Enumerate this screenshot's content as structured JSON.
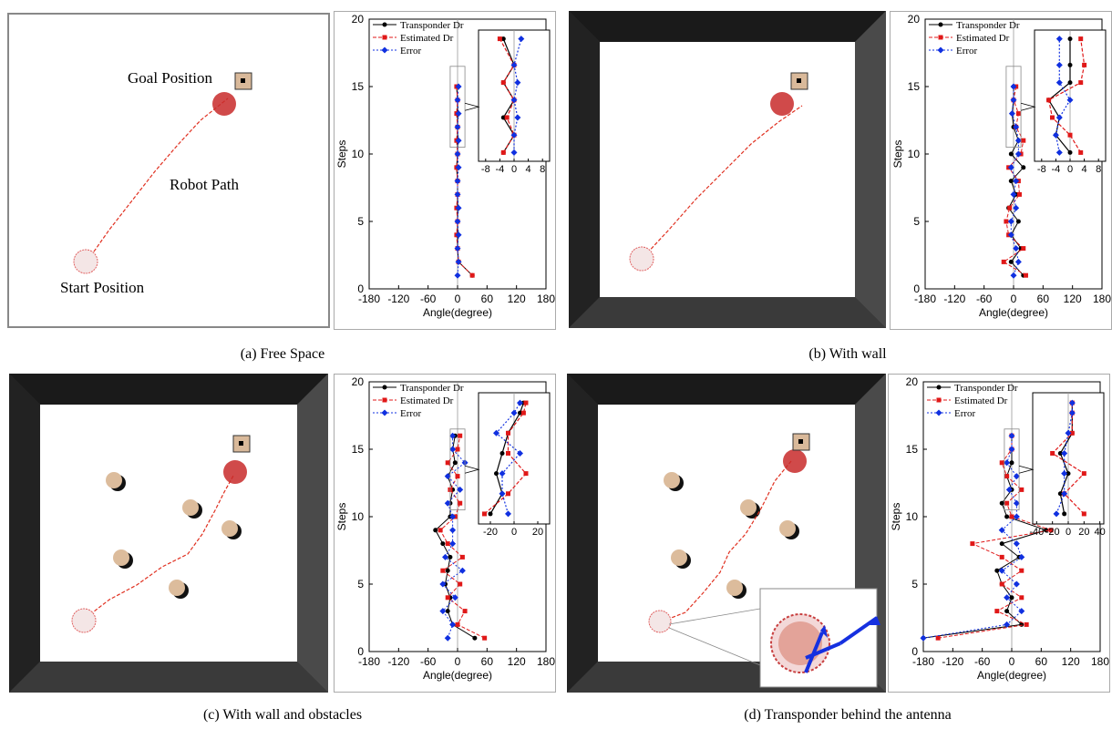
{
  "figures": [
    {
      "id": "a",
      "caption": "(a) Free Space",
      "scene": {
        "walls": false,
        "goal_label": "Goal Position",
        "path_label": "Robot Path",
        "start_label": "Start Position"
      }
    },
    {
      "id": "b",
      "caption": "(b) With wall",
      "scene": {
        "walls": true
      }
    },
    {
      "id": "c",
      "caption": "(c) With wall and obstacles",
      "scene": {
        "walls": true,
        "obstacles": true
      }
    },
    {
      "id": "d",
      "caption": "(d) Transponder behind the antenna",
      "scene": {
        "walls": true,
        "obstacles": true,
        "zoom_inset": true
      }
    }
  ],
  "chart_data": [
    {
      "id": "a",
      "type": "line",
      "xlabel": "Angle(degree)",
      "ylabel": "Steps",
      "xlim": [
        -180,
        180
      ],
      "ylim": [
        0,
        20
      ],
      "xticks": [
        "-180",
        "-120",
        "-60",
        "0",
        "60",
        "120",
        "180"
      ],
      "yticks": [
        "0",
        "5",
        "10",
        "15",
        "20"
      ],
      "legend": [
        "Transponder Dr",
        "Estimated Dr",
        "Error"
      ],
      "series": [
        {
          "name": "Transponder Dr",
          "x": [
            30,
            2,
            0,
            0,
            0,
            0,
            0,
            0,
            -2,
            0,
            0,
            0,
            0,
            0,
            -2
          ],
          "y": [
            1,
            2,
            3,
            4,
            5,
            6,
            7,
            8,
            9,
            10,
            11,
            12,
            13,
            14,
            15
          ]
        },
        {
          "name": "Estimated Dr",
          "x": [
            30,
            2,
            0,
            -2,
            0,
            -2,
            0,
            0,
            -2,
            0,
            -2,
            0,
            -2,
            0,
            -2
          ],
          "y": [
            1,
            2,
            3,
            4,
            5,
            6,
            7,
            8,
            9,
            10,
            11,
            12,
            13,
            14,
            15
          ]
        },
        {
          "name": "Error",
          "x": [
            0,
            2,
            0,
            2,
            0,
            2,
            0,
            0,
            2,
            0,
            2,
            0,
            2,
            0,
            2
          ],
          "y": [
            1,
            2,
            3,
            4,
            5,
            6,
            7,
            8,
            9,
            10,
            11,
            12,
            13,
            14,
            15
          ]
        }
      ],
      "inset": {
        "xticks": [
          "-8",
          "-4",
          "0",
          "4",
          "8"
        ],
        "xlim": [
          -10,
          10
        ],
        "ylim": [
          10.5,
          18
        ],
        "series": [
          {
            "x": [
              -3,
              0,
              -3,
              0,
              -3,
              0,
              -3
            ],
            "y": [
              11,
              12,
              13,
              14,
              15,
              16,
              17.5
            ]
          },
          {
            "x": [
              -3,
              0,
              -2,
              0,
              -3,
              0,
              -4
            ],
            "y": [
              11,
              12,
              13,
              14,
              15,
              16,
              17.5
            ]
          },
          {
            "x": [
              0,
              0,
              1,
              0,
              1,
              0,
              2
            ],
            "y": [
              11,
              12,
              13,
              14,
              15,
              16,
              17.5
            ]
          }
        ]
      }
    },
    {
      "id": "b",
      "type": "line",
      "xlabel": "Angle(degree)",
      "ylabel": "Steps",
      "xlim": [
        -180,
        180
      ],
      "ylim": [
        0,
        20
      ],
      "xticks": [
        "-180",
        "-120",
        "-60",
        "0",
        "60",
        "120",
        "180"
      ],
      "yticks": [
        "0",
        "5",
        "10",
        "15",
        "20"
      ],
      "legend": [
        "Transponder Dr",
        "Estimated Dr",
        "Error"
      ],
      "series": [
        {
          "name": "Transponder Dr",
          "x": [
            20,
            -5,
            15,
            -5,
            10,
            -10,
            5,
            -5,
            20,
            -5,
            10,
            0,
            -3,
            0,
            0
          ],
          "y": [
            1,
            2,
            3,
            4,
            5,
            6,
            7,
            8,
            9,
            10,
            11,
            12,
            13,
            14,
            15
          ]
        },
        {
          "name": "Estimated Dr",
          "x": [
            25,
            -20,
            20,
            -10,
            -15,
            -8,
            12,
            10,
            -10,
            15,
            20,
            5,
            10,
            0,
            5
          ],
          "y": [
            1,
            2,
            3,
            4,
            5,
            6,
            7,
            8,
            9,
            10,
            11,
            12,
            13,
            14,
            15
          ]
        },
        {
          "name": "Error",
          "x": [
            0,
            10,
            5,
            -5,
            -5,
            5,
            0,
            5,
            -5,
            10,
            10,
            5,
            -3,
            0,
            0
          ],
          "y": [
            1,
            2,
            3,
            4,
            5,
            6,
            7,
            8,
            9,
            10,
            11,
            12,
            13,
            14,
            15
          ]
        }
      ],
      "inset": {
        "xticks": [
          "-8",
          "-4",
          "0",
          "4",
          "8"
        ],
        "xlim": [
          -10,
          10
        ],
        "ylim": [
          10.5,
          18
        ],
        "series": [
          {
            "x": [
              0,
              -4,
              -3,
              -6,
              0,
              0,
              0
            ],
            "y": [
              11,
              12,
              13,
              14,
              15,
              16,
              17.5
            ]
          },
          {
            "x": [
              3,
              0,
              -5,
              -6,
              3,
              4,
              3
            ],
            "y": [
              11,
              12,
              13,
              14,
              15,
              16,
              17.5
            ]
          },
          {
            "x": [
              -3,
              -4,
              -3,
              0,
              -3,
              -3,
              -3
            ],
            "y": [
              11,
              12,
              13,
              14,
              15,
              16,
              17.5
            ]
          }
        ]
      }
    },
    {
      "id": "c",
      "type": "line",
      "xlabel": "Angle(degree)",
      "ylabel": "Steps",
      "xlim": [
        -180,
        180
      ],
      "ylim": [
        0,
        20
      ],
      "xticks": [
        "-180",
        "-120",
        "-60",
        "0",
        "60",
        "120",
        "180"
      ],
      "yticks": [
        "0",
        "5",
        "10",
        "15",
        "20"
      ],
      "legend": [
        "Transponder Dr",
        "Estimated Dr",
        "Error"
      ],
      "series": [
        {
          "name": "Transponder Dr",
          "x": [
            35,
            -10,
            -20,
            -15,
            -25,
            -20,
            -15,
            -30,
            -45,
            -15,
            -15,
            -10,
            -20,
            -5,
            -10,
            -5
          ],
          "y": [
            1,
            2,
            3,
            4,
            5,
            6,
            7,
            8,
            9,
            10,
            11,
            12,
            13,
            14,
            15,
            16
          ]
        },
        {
          "name": "Estimated Dr",
          "x": [
            55,
            0,
            15,
            -20,
            5,
            -30,
            10,
            -20,
            -35,
            -5,
            5,
            -15,
            0,
            -20,
            0,
            5
          ],
          "y": [
            1,
            2,
            3,
            4,
            5,
            6,
            7,
            8,
            9,
            10,
            11,
            12,
            13,
            14,
            15,
            16
          ]
        },
        {
          "name": "Error",
          "x": [
            -20,
            -10,
            -30,
            -5,
            -30,
            10,
            -25,
            -10,
            -10,
            -10,
            -20,
            5,
            -20,
            15,
            -10,
            -10
          ],
          "y": [
            1,
            2,
            3,
            4,
            5,
            6,
            7,
            8,
            9,
            10,
            11,
            12,
            13,
            14,
            15,
            16
          ]
        }
      ],
      "inset": {
        "xticks": [
          "-20",
          "0",
          "20"
        ],
        "xlim": [
          -30,
          30
        ],
        "ylim": [
          10.5,
          17
        ],
        "series": [
          {
            "x": [
              -20,
              -10,
              -15,
              -10,
              -5,
              5,
              8
            ],
            "y": [
              11,
              12,
              13,
              14,
              15,
              16,
              16.5
            ]
          },
          {
            "x": [
              -25,
              -5,
              10,
              -5,
              -5,
              8,
              10
            ],
            "y": [
              11,
              12,
              13,
              14,
              15,
              16,
              16.5
            ]
          },
          {
            "x": [
              -5,
              -10,
              -10,
              5,
              -15,
              0,
              5
            ],
            "y": [
              11,
              12,
              13,
              14,
              15,
              16,
              16.5
            ]
          }
        ]
      }
    },
    {
      "id": "d",
      "type": "line",
      "xlabel": "Angle(degree)",
      "ylabel": "Steps",
      "xlim": [
        -180,
        180
      ],
      "ylim": [
        0,
        20
      ],
      "xticks": [
        "-180",
        "-120",
        "-60",
        "0",
        "60",
        "120",
        "180"
      ],
      "yticks": [
        "0",
        "5",
        "10",
        "15",
        "20"
      ],
      "legend": [
        "Transponder Dr",
        "Estimated Dr",
        "Error"
      ],
      "series": [
        {
          "name": "Transponder Dr",
          "x": [
            -180,
            20,
            -10,
            0,
            -20,
            -30,
            15,
            -20,
            70,
            -10,
            -20,
            0,
            -10,
            0,
            0,
            0
          ],
          "y": [
            1,
            2,
            3,
            4,
            5,
            6,
            7,
            8,
            9,
            10,
            11,
            12,
            13,
            14,
            15,
            16
          ]
        },
        {
          "name": "Estimated Dr",
          "x": [
            -150,
            30,
            -30,
            20,
            -20,
            20,
            -20,
            -80,
            80,
            0,
            -10,
            20,
            -10,
            -20,
            0,
            0
          ],
          "y": [
            1,
            2,
            3,
            4,
            5,
            6,
            7,
            8,
            9,
            10,
            11,
            12,
            13,
            14,
            15,
            16
          ]
        },
        {
          "name": "Error",
          "x": [
            -180,
            -10,
            20,
            -10,
            10,
            -20,
            20,
            10,
            -20,
            10,
            10,
            -5,
            10,
            -10,
            0,
            0
          ],
          "y": [
            1,
            2,
            3,
            4,
            5,
            6,
            7,
            8,
            9,
            10,
            11,
            12,
            13,
            14,
            15,
            16
          ]
        }
      ],
      "inset": {
        "xticks": [
          "-40",
          "-20",
          "0",
          "20",
          "40"
        ],
        "xlim": [
          -45,
          45
        ],
        "ylim": [
          10.5,
          17
        ],
        "series": [
          {
            "x": [
              -5,
              -10,
              0,
              -10,
              5,
              5,
              5
            ],
            "y": [
              11,
              12,
              13,
              14,
              15,
              16,
              16.5
            ]
          },
          {
            "x": [
              20,
              -5,
              20,
              -20,
              5,
              5,
              5
            ],
            "y": [
              11,
              12,
              13,
              14,
              15,
              16,
              16.5
            ]
          },
          {
            "x": [
              -15,
              -5,
              -5,
              -5,
              0,
              5,
              5
            ],
            "y": [
              11,
              12,
              13,
              14,
              15,
              16,
              16.5
            ]
          }
        ]
      }
    }
  ]
}
